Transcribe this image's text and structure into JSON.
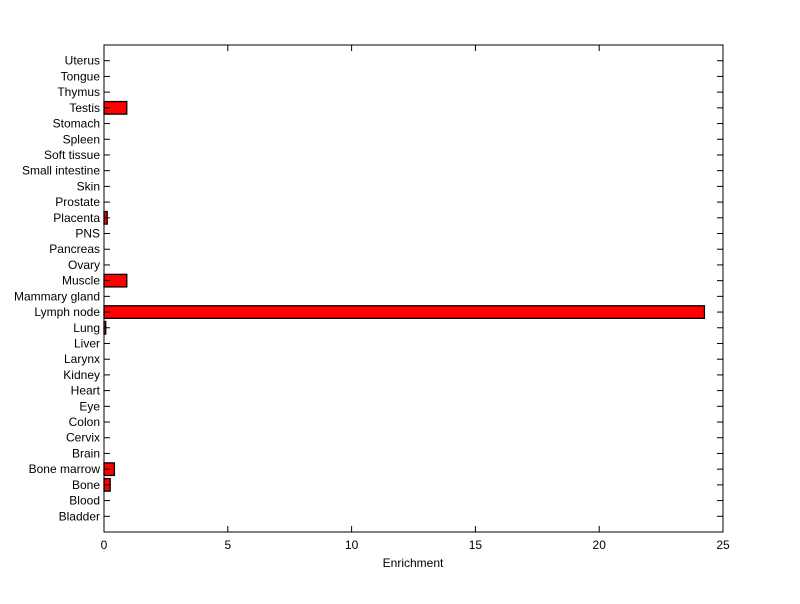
{
  "chart_data": {
    "type": "bar",
    "orientation": "horizontal",
    "title": "",
    "xlabel": "Enrichment",
    "ylabel": "",
    "xlim": [
      0,
      25
    ],
    "xticks": [
      0,
      5,
      10,
      15,
      20,
      25
    ],
    "grid": false,
    "bar_color": "#ff0000",
    "categories": [
      "Bladder",
      "Blood",
      "Bone",
      "Bone marrow",
      "Brain",
      "Cervix",
      "Colon",
      "Eye",
      "Heart",
      "Kidney",
      "Larynx",
      "Liver",
      "Lung",
      "Lymph node",
      "Mammary gland",
      "Muscle",
      "Ovary",
      "Pancreas",
      "PNS",
      "Placenta",
      "Prostate",
      "Skin",
      "Small intestine",
      "Soft tissue",
      "Spleen",
      "Stomach",
      "Testis",
      "Thymus",
      "Tongue",
      "Uterus"
    ],
    "values": [
      0,
      0,
      0.25,
      0.42,
      0,
      0,
      0,
      0,
      0,
      0,
      0,
      0,
      0.07,
      24.25,
      0,
      0.92,
      0,
      0,
      0,
      0.13,
      0,
      0,
      0,
      0,
      0,
      0,
      0.92,
      0,
      0,
      0
    ]
  }
}
